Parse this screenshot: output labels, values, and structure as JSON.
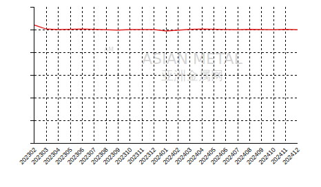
{
  "chart_data": {
    "type": "line",
    "categories": [
      "202302",
      "202303",
      "202304",
      "202305",
      "202306",
      "202307",
      "202308",
      "202309",
      "202310",
      "202311",
      "202312",
      "202401",
      "202402",
      "202403",
      "202404",
      "202405",
      "202406",
      "202407",
      "202408",
      "202409",
      "202410",
      "202411",
      "202412"
    ],
    "values": [
      5.2,
      5.02,
      5.0,
      5.02,
      5.02,
      5.01,
      5.0,
      4.98,
      5.0,
      5.01,
      5.0,
      4.94,
      4.98,
      5.01,
      5.02,
      5.0,
      5.0,
      4.99,
      5.01,
      5.0,
      4.99,
      5.01,
      4.99
    ],
    "color": "#e02020",
    "ylim": [
      0,
      6
    ],
    "yticks": [
      0,
      1,
      2,
      3,
      4,
      5,
      6
    ],
    "grid": true,
    "tick_labels": "x",
    "annotations": [
      "AM",
      "ASIAN METAL",
      "亚洲金属网"
    ]
  }
}
